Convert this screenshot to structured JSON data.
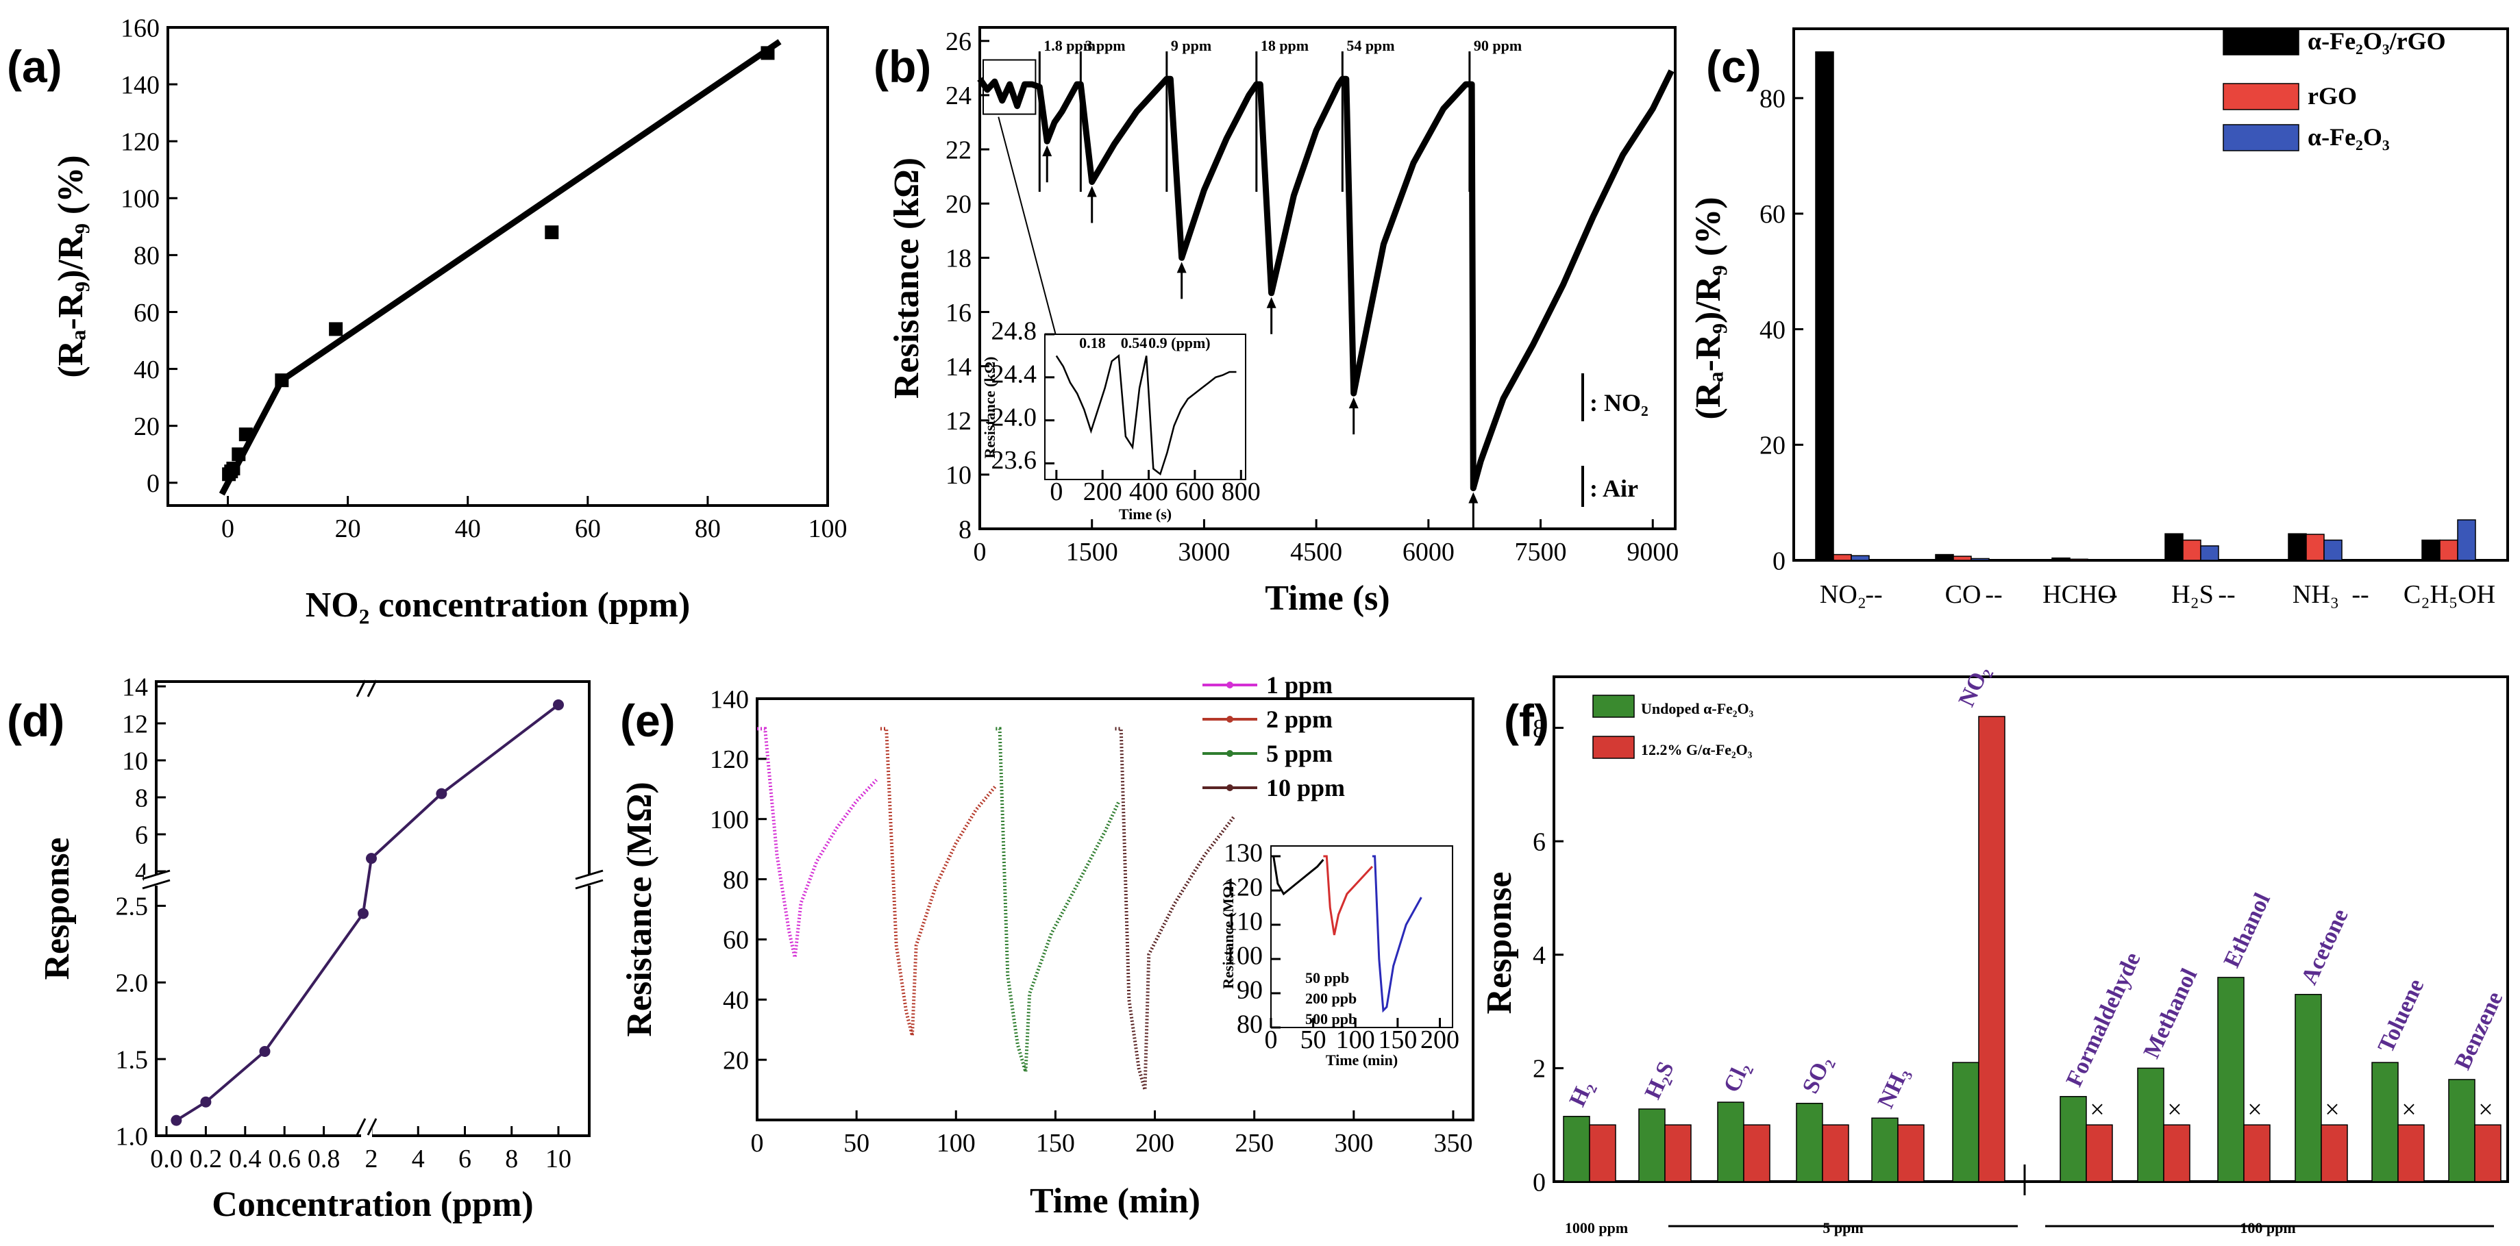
{
  "chart_data": [
    {
      "id": "a",
      "type": "scatter",
      "panel_label": "(a)",
      "xlabel": "NO₂ concentration (ppm)",
      "ylabel": "(Rₐ-R₉)/R₉ (%)",
      "xlim": [
        -10,
        100
      ],
      "ylim": [
        -8,
        160
      ],
      "xticks": [
        "0",
        "20",
        "40",
        "60",
        "80",
        "100"
      ],
      "yticks": [
        "0",
        "20",
        "40",
        "60",
        "80",
        "100",
        "120",
        "140",
        "160"
      ],
      "x": [
        0.18,
        0.54,
        0.9,
        1.8,
        3,
        9,
        18,
        54,
        90
      ],
      "y": [
        3,
        4,
        5,
        10,
        17,
        36,
        54,
        88,
        151
      ],
      "fit_line": [
        [
          -1,
          -4
        ],
        [
          9,
          36
        ],
        [
          92,
          155
        ]
      ]
    },
    {
      "id": "b",
      "type": "line",
      "panel_label": "(b)",
      "xlabel": "Time (s)",
      "ylabel": "Resistance (kΩ)",
      "xlim": [
        0,
        9300
      ],
      "ylim": [
        8,
        26.5
      ],
      "xticks": [
        "0",
        "1500",
        "3000",
        "4500",
        "6000",
        "7500",
        "9000"
      ],
      "yticks": [
        "8",
        "10",
        "12",
        "14",
        "16",
        "18",
        "20",
        "22",
        "24",
        "26"
      ],
      "annotations": [
        "1.8 ppm",
        "3 ppm",
        "9 ppm",
        "18 ppm",
        "54 ppm",
        "90 ppm"
      ],
      "legend_no2": ": NO₂",
      "legend_air": ": Air",
      "series": [
        {
          "name": "resistance",
          "x": [
            0,
            100,
            200,
            300,
            400,
            500,
            600,
            700,
            800,
            900,
            1000,
            1100,
            1200,
            1300,
            1350,
            1500,
            1800,
            2100,
            2400,
            2500,
            2550,
            2700,
            3000,
            3300,
            3600,
            3700,
            3750,
            3900,
            4200,
            4500,
            4800,
            4850,
            4900,
            5000,
            5400,
            5800,
            6200,
            6500,
            6580,
            6600,
            6700,
            7000,
            7400,
            7800,
            8200,
            8600,
            9000,
            9250
          ],
          "y": [
            24.6,
            24.2,
            24.5,
            23.8,
            24.4,
            23.6,
            24.4,
            24.4,
            24.3,
            22.3,
            23.0,
            23.4,
            23.9,
            24.4,
            24.4,
            20.8,
            22.2,
            23.4,
            24.3,
            24.6,
            24.6,
            18.0,
            20.5,
            22.4,
            24.0,
            24.4,
            24.4,
            16.7,
            20.3,
            22.7,
            24.4,
            24.6,
            24.6,
            13.0,
            18.5,
            21.5,
            23.5,
            24.4,
            24.4,
            9.5,
            10.5,
            12.8,
            14.8,
            17.0,
            19.5,
            21.8,
            23.5,
            24.9
          ]
        }
      ],
      "inset": {
        "xlabel": "Time (s)",
        "ylabel": "Resistance (kΩ)",
        "xlim": [
          -50,
          820
        ],
        "ylim": [
          23.45,
          24.8
        ],
        "xticks": [
          "0",
          "200",
          "400",
          "600",
          "800"
        ],
        "yticks": [
          "23.6",
          "24.0",
          "24.4",
          "24.8"
        ],
        "annotations": [
          "0.18",
          "0.54",
          "0.9 (ppm)"
        ],
        "x": [
          0,
          30,
          60,
          90,
          120,
          150,
          180,
          210,
          240,
          270,
          300,
          330,
          360,
          390,
          420,
          450,
          480,
          510,
          540,
          570,
          600,
          630,
          660,
          690,
          720,
          750,
          780
        ],
        "y": [
          24.6,
          24.5,
          24.35,
          24.25,
          24.1,
          23.9,
          24.1,
          24.3,
          24.55,
          24.6,
          23.85,
          23.75,
          24.3,
          24.6,
          23.55,
          23.5,
          23.7,
          23.95,
          24.1,
          24.2,
          24.25,
          24.3,
          24.35,
          24.4,
          24.42,
          24.45,
          24.45
        ]
      }
    },
    {
      "id": "c",
      "type": "bar",
      "panel_label": "(c)",
      "ylabel": "(Rₐ-R₉)/R₉ (%)",
      "ylim": [
        0,
        92
      ],
      "yticks": [
        "0",
        "20",
        "40",
        "60",
        "80"
      ],
      "categories": [
        "NO₂",
        "CO",
        "HCHO",
        "H₂S",
        "NH₃",
        "C₂H₅OH"
      ],
      "separators": [
        "--",
        "--",
        "--",
        "--",
        "--"
      ],
      "series": [
        {
          "name": "α-Fe₂O₃/rGO",
          "color": "#000000",
          "values": [
            88,
            1,
            0.4,
            4.6,
            4.6,
            3.5
          ]
        },
        {
          "name": "rGO",
          "color": "#e8453c",
          "values": [
            1,
            0.7,
            0.2,
            3.5,
            4.5,
            3.5
          ]
        },
        {
          "name": "α-Fe₂O₃",
          "color": "#3a57b8",
          "values": [
            0.8,
            0.3,
            0.1,
            2.5,
            3.5,
            7
          ]
        }
      ]
    },
    {
      "id": "d",
      "type": "line",
      "panel_label": "(d)",
      "xlabel": "Concentration (ppm)",
      "ylabel": "Response",
      "xticks": [
        "0.0",
        "0.2",
        "0.4",
        "0.6",
        "0.8",
        "2",
        "4",
        "6",
        "8",
        "10"
      ],
      "yticks": [
        "1.0",
        "1.5",
        "2.0",
        "2.5",
        "4",
        "6",
        "8",
        "10",
        "12",
        "14"
      ],
      "x": [
        0.05,
        0.2,
        0.5,
        1.0,
        2,
        5,
        10
      ],
      "y": [
        1.1,
        1.22,
        1.55,
        2.45,
        4.7,
        8.2,
        13.0
      ]
    },
    {
      "id": "e",
      "type": "line",
      "panel_label": "(e)",
      "xlabel": "Time (min)",
      "ylabel": "Resistance (MΩ)",
      "xlim": [
        0,
        360
      ],
      "ylim": [
        0,
        140
      ],
      "xticks": [
        "0",
        "50",
        "100",
        "150",
        "200",
        "250",
        "300",
        "350"
      ],
      "yticks": [
        "20",
        "40",
        "60",
        "80",
        "100",
        "120",
        "140"
      ],
      "series": [
        {
          "name": "1 ppm",
          "color": "#d42fd4",
          "x": [
            0,
            4,
            10,
            16,
            19,
            22,
            30,
            40,
            50,
            60
          ],
          "y": [
            130,
            130,
            88,
            63,
            54,
            72,
            86,
            97,
            106,
            113
          ]
        },
        {
          "name": "2 ppm",
          "color": "#b5392a",
          "x": [
            62,
            65,
            70,
            75,
            78,
            80,
            90,
            100,
            110,
            120
          ],
          "y": [
            130,
            130,
            58,
            36,
            28,
            58,
            78,
            92,
            103,
            111
          ]
        },
        {
          "name": "5 ppm",
          "color": "#2f7d2f",
          "x": [
            120,
            122,
            126,
            131,
            135,
            137,
            148,
            160,
            175,
            182
          ],
          "y": [
            130,
            130,
            48,
            25,
            16,
            42,
            62,
            77,
            96,
            106
          ]
        },
        {
          "name": "10 ppm",
          "color": "#5a2424",
          "x": [
            180,
            183,
            187,
            192,
            195,
            197,
            210,
            225,
            240
          ],
          "y": [
            130,
            130,
            40,
            17,
            10,
            55,
            72,
            88,
            101
          ]
        }
      ],
      "inset": {
        "xlabel": "Time (min)",
        "ylabel": "Resistance (MΩ)",
        "xlim": [
          0,
          215
        ],
        "ylim": [
          80,
          133
        ],
        "xticks": [
          "0",
          "50",
          "100",
          "150",
          "200"
        ],
        "yticks": [
          "80",
          "90",
          "100",
          "110",
          "120",
          "130"
        ],
        "series": [
          {
            "name": "50 ppb",
            "color": "#000000",
            "x": [
              0,
              3,
              8,
              15,
              25,
              40,
              55,
              62
            ],
            "y": [
              130,
              130,
              122,
              119,
              121,
              124,
              127,
              129
            ]
          },
          {
            "name": "200 ppb",
            "color": "#d42f2f",
            "x": [
              62,
              66,
              70,
              75,
              80,
              90,
              105,
              120
            ],
            "y": [
              130,
              130,
              115,
              107,
              113,
              119,
              123,
              127
            ]
          },
          {
            "name": "500 ppb",
            "color": "#2a2ab8",
            "x": [
              120,
              123,
              128,
              133,
              137,
              145,
              160,
              178
            ],
            "y": [
              130,
              130,
              100,
              85,
              86,
              98,
              110,
              118
            ]
          }
        ]
      }
    },
    {
      "id": "f",
      "type": "bar",
      "panel_label": "(f)",
      "ylabel": "Response",
      "ylim": [
        0,
        8.9
      ],
      "yticks": [
        "0",
        "2",
        "4",
        "6",
        "8"
      ],
      "categories": [
        "H₂",
        "H₂S",
        "Cl₂",
        "SO₂",
        "NH₃",
        "NO₂",
        "Formaldehyde",
        "Methanol",
        "Ethanol",
        "Acetone",
        "Toluene",
        "Benzene"
      ],
      "bottom_labels": [
        "1000 ppm",
        "5 ppm",
        "100 ppm"
      ],
      "series": [
        {
          "name": "Undoped α-Fe₂O₃",
          "color": "#3a8a2f",
          "values": [
            1.15,
            1.28,
            1.4,
            1.38,
            1.12,
            2.1,
            1.5,
            2.0,
            3.6,
            3.3,
            2.1,
            1.8
          ]
        },
        {
          "name": "12.2% G/α-Fe₂O₃",
          "color": "#d43a34",
          "values": [
            1.0,
            1.0,
            1.0,
            1.0,
            1.0,
            8.2,
            1.0,
            1.0,
            1.0,
            1.0,
            1.0,
            1.0
          ]
        }
      ]
    }
  ]
}
